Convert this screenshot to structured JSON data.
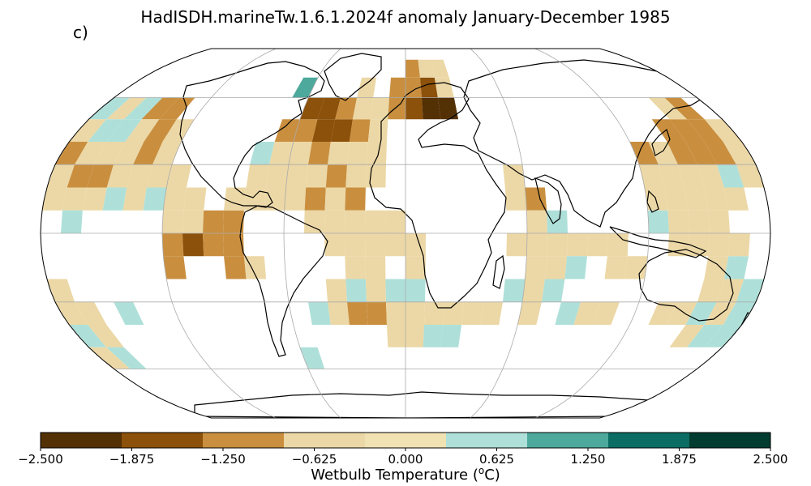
{
  "title": "HadISDH.marineTw.1.6.1.2024f anomaly January-December 1985",
  "panel_label": "c)",
  "colorbar": {
    "label": "Wetbulb Temperature (",
    "label_sup": "o",
    "label_end": "C)",
    "ticks": [
      "−2.500",
      "−1.875",
      "−1.250",
      "−0.625",
      "0.000",
      "0.625",
      "1.250",
      "1.875",
      "2.500"
    ],
    "tick_values": [
      -2.5,
      -1.875,
      -1.25,
      -0.625,
      0.0,
      0.625,
      1.25,
      1.875,
      2.5
    ],
    "colors": [
      "#543005",
      "#8c510a",
      "#c98f3f",
      "#ecd8a6",
      "#f1e2b4",
      "#aee0d9",
      "#4da99c",
      "#0b6d63",
      "#003c30"
    ],
    "bins": [
      {
        "min": -2.5,
        "max": -1.875,
        "color": "#543005"
      },
      {
        "min": -1.875,
        "max": -1.25,
        "color": "#8c510a"
      },
      {
        "min": -1.25,
        "max": -0.625,
        "color": "#c98f3f"
      },
      {
        "min": -0.625,
        "max": 0.0,
        "color": "#ecd8a6"
      },
      {
        "min": 0.0,
        "max": 0.625,
        "color": "#aee0d9"
      },
      {
        "min": 0.625,
        "max": 1.25,
        "color": "#4da99c"
      },
      {
        "min": 1.25,
        "max": 1.875,
        "color": "#0b6d63"
      },
      {
        "min": 1.875,
        "max": 2.5,
        "color": "#003c30"
      }
    ]
  },
  "map": {
    "projection": "Robinson",
    "gridlines": true,
    "grid_lons": [
      -180,
      -120,
      -60,
      0,
      60,
      120,
      180
    ],
    "grid_lats": [
      -60,
      -30,
      0,
      30,
      60
    ]
  },
  "grid_data": [
    {
      "lon": -175,
      "lat": 55,
      "v": 0.3
    },
    {
      "lon": -165,
      "lat": 55,
      "v": -0.4
    },
    {
      "lon": -155,
      "lat": 55,
      "v": 0.3
    },
    {
      "lon": -145,
      "lat": 55,
      "v": -0.9
    },
    {
      "lon": -135,
      "lat": 55,
      "v": -0.9
    },
    {
      "lon": -175,
      "lat": 45,
      "v": -0.4
    },
    {
      "lon": -165,
      "lat": 45,
      "v": 0.3
    },
    {
      "lon": -155,
      "lat": 45,
      "v": 0.3
    },
    {
      "lon": -145,
      "lat": 45,
      "v": -0.4
    },
    {
      "lon": -135,
      "lat": 45,
      "v": -0.9
    },
    {
      "lon": -125,
      "lat": 45,
      "v": -0.4
    },
    {
      "lon": -175,
      "lat": 35,
      "v": -0.9
    },
    {
      "lon": -165,
      "lat": 35,
      "v": -0.4
    },
    {
      "lon": -155,
      "lat": 35,
      "v": -0.4
    },
    {
      "lon": -145,
      "lat": 35,
      "v": -0.4
    },
    {
      "lon": -135,
      "lat": 35,
      "v": -0.9
    },
    {
      "lon": -125,
      "lat": 35,
      "v": -0.4
    },
    {
      "lon": -175,
      "lat": 25,
      "v": -0.4
    },
    {
      "lon": -165,
      "lat": 25,
      "v": -0.9
    },
    {
      "lon": -155,
      "lat": 25,
      "v": -0.9
    },
    {
      "lon": -145,
      "lat": 25,
      "v": -0.4
    },
    {
      "lon": -135,
      "lat": 25,
      "v": -0.4
    },
    {
      "lon": -125,
      "lat": 25,
      "v": -0.4
    },
    {
      "lon": -115,
      "lat": 25,
      "v": -0.4
    },
    {
      "lon": -175,
      "lat": 15,
      "v": -0.4
    },
    {
      "lon": -165,
      "lat": 15,
      "v": -0.4
    },
    {
      "lon": -155,
      "lat": 15,
      "v": -0.4
    },
    {
      "lon": -145,
      "lat": 15,
      "v": 0.3
    },
    {
      "lon": -135,
      "lat": 15,
      "v": -0.4
    },
    {
      "lon": -125,
      "lat": 15,
      "v": 0.3
    },
    {
      "lon": -115,
      "lat": 15,
      "v": -0.4
    },
    {
      "lon": -105,
      "lat": 15,
      "v": -0.4
    },
    {
      "lon": -165,
      "lat": 5,
      "v": 0.3
    },
    {
      "lon": -115,
      "lat": 5,
      "v": -0.4
    },
    {
      "lon": -105,
      "lat": 5,
      "v": -0.4
    },
    {
      "lon": -95,
      "lat": 5,
      "v": -0.9
    },
    {
      "lon": -85,
      "lat": 5,
      "v": -0.9
    },
    {
      "lon": -115,
      "lat": -5,
      "v": -0.9
    },
    {
      "lon": -105,
      "lat": -5,
      "v": -1.5
    },
    {
      "lon": -95,
      "lat": -5,
      "v": -0.9
    },
    {
      "lon": -85,
      "lat": -5,
      "v": -0.9
    },
    {
      "lon": -115,
      "lat": -15,
      "v": -0.9
    },
    {
      "lon": -85,
      "lat": -15,
      "v": -0.9
    },
    {
      "lon": -75,
      "lat": -15,
      "v": -0.4
    },
    {
      "lon": -175,
      "lat": -25,
      "v": -0.4
    },
    {
      "lon": -175,
      "lat": -35,
      "v": -0.4
    },
    {
      "lon": -165,
      "lat": -35,
      "v": -0.4
    },
    {
      "lon": -145,
      "lat": -35,
      "v": 0.3
    },
    {
      "lon": -175,
      "lat": -45,
      "v": 0.3
    },
    {
      "lon": -165,
      "lat": -45,
      "v": -0.4
    },
    {
      "lon": -175,
      "lat": -55,
      "v": -0.4
    },
    {
      "lon": -165,
      "lat": -55,
      "v": 0.3
    },
    {
      "lon": -85,
      "lat": 15,
      "v": -0.4
    },
    {
      "lon": -75,
      "lat": 15,
      "v": -0.4
    },
    {
      "lon": -65,
      "lat": 15,
      "v": -0.4
    },
    {
      "lon": -55,
      "lat": 15,
      "v": -0.4
    },
    {
      "lon": -45,
      "lat": 15,
      "v": -0.9
    },
    {
      "lon": -35,
      "lat": 15,
      "v": -0.4
    },
    {
      "lon": -25,
      "lat": 15,
      "v": -0.9
    },
    {
      "lon": -75,
      "lat": 25,
      "v": -0.4
    },
    {
      "lon": -65,
      "lat": 25,
      "v": -0.4
    },
    {
      "lon": -55,
      "lat": 25,
      "v": -0.4
    },
    {
      "lon": -45,
      "lat": 25,
      "v": -0.4
    },
    {
      "lon": -35,
      "lat": 25,
      "v": -0.9
    },
    {
      "lon": -25,
      "lat": 25,
      "v": -0.4
    },
    {
      "lon": -15,
      "lat": 25,
      "v": -0.4
    },
    {
      "lon": -75,
      "lat": 35,
      "v": 0.3
    },
    {
      "lon": -65,
      "lat": 35,
      "v": -0.4
    },
    {
      "lon": -55,
      "lat": 35,
      "v": -0.4
    },
    {
      "lon": -45,
      "lat": 35,
      "v": -0.9
    },
    {
      "lon": -35,
      "lat": 35,
      "v": -0.4
    },
    {
      "lon": -25,
      "lat": 35,
      "v": -0.4
    },
    {
      "lon": -15,
      "lat": 35,
      "v": -0.4
    },
    {
      "lon": -65,
      "lat": 45,
      "v": -0.9
    },
    {
      "lon": -55,
      "lat": 45,
      "v": -0.9
    },
    {
      "lon": -45,
      "lat": 45,
      "v": -1.5
    },
    {
      "lon": -35,
      "lat": 45,
      "v": -1.5
    },
    {
      "lon": -25,
      "lat": 45,
      "v": -0.9
    },
    {
      "lon": -15,
      "lat": 45,
      "v": -0.4
    },
    {
      "lon": -55,
      "lat": 55,
      "v": -1.5
    },
    {
      "lon": -45,
      "lat": 55,
      "v": -1.5
    },
    {
      "lon": -35,
      "lat": 55,
      "v": -0.9
    },
    {
      "lon": -25,
      "lat": 55,
      "v": -0.4
    },
    {
      "lon": -15,
      "lat": 55,
      "v": -0.4
    },
    {
      "lon": -5,
      "lat": 55,
      "v": -0.9
    },
    {
      "lon": 5,
      "lat": 55,
      "v": -1.5
    },
    {
      "lon": 15,
      "lat": 55,
      "v": -2.1
    },
    {
      "lon": 25,
      "lat": 55,
      "v": -2.1
    },
    {
      "lon": -25,
      "lat": 65,
      "v": -0.4
    },
    {
      "lon": -5,
      "lat": 65,
      "v": -0.9
    },
    {
      "lon": 5,
      "lat": 65,
      "v": -0.9
    },
    {
      "lon": 15,
      "lat": 65,
      "v": -1.5
    },
    {
      "lon": 25,
      "lat": 65,
      "v": -0.4
    },
    {
      "lon": 5,
      "lat": 75,
      "v": -0.9
    },
    {
      "lon": 15,
      "lat": 75,
      "v": -0.4
    },
    {
      "lon": 25,
      "lat": 75,
      "v": -0.4
    },
    {
      "lon": -65,
      "lat": 65,
      "v": 0.8
    },
    {
      "lon": -45,
      "lat": 5,
      "v": -0.4
    },
    {
      "lon": -35,
      "lat": 5,
      "v": -0.4
    },
    {
      "lon": -25,
      "lat": 5,
      "v": -0.4
    },
    {
      "lon": -15,
      "lat": 5,
      "v": -0.4
    },
    {
      "lon": -5,
      "lat": 5,
      "v": -0.4
    },
    {
      "lon": -35,
      "lat": -5,
      "v": -0.4
    },
    {
      "lon": -25,
      "lat": -5,
      "v": -0.4
    },
    {
      "lon": -15,
      "lat": -5,
      "v": -0.4
    },
    {
      "lon": -5,
      "lat": -5,
      "v": -0.4
    },
    {
      "lon": 5,
      "lat": -5,
      "v": -0.4
    },
    {
      "lon": -25,
      "lat": -15,
      "v": -0.4
    },
    {
      "lon": -15,
      "lat": -15,
      "v": -0.4
    },
    {
      "lon": 5,
      "lat": -15,
      "v": -0.4
    },
    {
      "lon": -35,
      "lat": -25,
      "v": -0.4
    },
    {
      "lon": -25,
      "lat": -25,
      "v": 0.3
    },
    {
      "lon": -15,
      "lat": -25,
      "v": -0.4
    },
    {
      "lon": -5,
      "lat": -25,
      "v": 0.3
    },
    {
      "lon": 5,
      "lat": -25,
      "v": 0.3
    },
    {
      "lon": -45,
      "lat": -35,
      "v": 0.3
    },
    {
      "lon": -35,
      "lat": -35,
      "v": -0.4
    },
    {
      "lon": -25,
      "lat": -35,
      "v": -0.9
    },
    {
      "lon": -15,
      "lat": -35,
      "v": -0.9
    },
    {
      "lon": -5,
      "lat": -35,
      "v": -0.4
    },
    {
      "lon": 5,
      "lat": -35,
      "v": -0.4
    },
    {
      "lon": 15,
      "lat": -35,
      "v": -0.4
    },
    {
      "lon": 25,
      "lat": -35,
      "v": -0.4
    },
    {
      "lon": 35,
      "lat": -35,
      "v": -0.4
    },
    {
      "lon": -5,
      "lat": -45,
      "v": -0.4
    },
    {
      "lon": 5,
      "lat": -45,
      "v": -0.4
    },
    {
      "lon": 15,
      "lat": -45,
      "v": 0.3
    },
    {
      "lon": 25,
      "lat": -45,
      "v": 0.3
    },
    {
      "lon": -55,
      "lat": -55,
      "v": 0.3
    },
    {
      "lon": 55,
      "lat": 25,
      "v": -0.4
    },
    {
      "lon": 65,
      "lat": 15,
      "v": -0.9
    },
    {
      "lon": 55,
      "lat": 15,
      "v": -0.4
    },
    {
      "lon": 65,
      "lat": 5,
      "v": -0.4
    },
    {
      "lon": 75,
      "lat": 5,
      "v": 0.3
    },
    {
      "lon": 55,
      "lat": -5,
      "v": -0.4
    },
    {
      "lon": 65,
      "lat": -5,
      "v": -0.4
    },
    {
      "lon": 75,
      "lat": -5,
      "v": -0.4
    },
    {
      "lon": 85,
      "lat": -5,
      "v": -0.4
    },
    {
      "lon": 95,
      "lat": -5,
      "v": -0.4
    },
    {
      "lon": 65,
      "lat": -15,
      "v": -0.4
    },
    {
      "lon": 75,
      "lat": -15,
      "v": -0.4
    },
    {
      "lon": 85,
      "lat": -15,
      "v": 0.3
    },
    {
      "lon": 55,
      "lat": -25,
      "v": 0.3
    },
    {
      "lon": 65,
      "lat": -25,
      "v": -0.4
    },
    {
      "lon": 75,
      "lat": -25,
      "v": 0.3
    },
    {
      "lon": 45,
      "lat": -35,
      "v": -0.4
    },
    {
      "lon": 65,
      "lat": -35,
      "v": -0.4
    },
    {
      "lon": 85,
      "lat": -35,
      "v": 0.3
    },
    {
      "lon": 95,
      "lat": -35,
      "v": -0.4
    },
    {
      "lon": 105,
      "lat": -35,
      "v": -0.4
    },
    {
      "lon": 135,
      "lat": -35,
      "v": -0.4
    },
    {
      "lon": 145,
      "lat": -35,
      "v": -0.4
    },
    {
      "lon": 155,
      "lat": -35,
      "v": 0.3
    },
    {
      "lon": 125,
      "lat": 5,
      "v": 0.3
    },
    {
      "lon": 135,
      "lat": 5,
      "v": -0.4
    },
    {
      "lon": 145,
      "lat": 5,
      "v": -0.4
    },
    {
      "lon": 155,
      "lat": 5,
      "v": -0.4
    },
    {
      "lon": 125,
      "lat": 15,
      "v": -0.4
    },
    {
      "lon": 135,
      "lat": 15,
      "v": -0.4
    },
    {
      "lon": 145,
      "lat": 15,
      "v": -0.4
    },
    {
      "lon": 155,
      "lat": 15,
      "v": -0.4
    },
    {
      "lon": 165,
      "lat": 15,
      "v": -0.4
    },
    {
      "lon": 125,
      "lat": 25,
      "v": -0.4
    },
    {
      "lon": 135,
      "lat": 25,
      "v": -0.4
    },
    {
      "lon": 145,
      "lat": 25,
      "v": -0.4
    },
    {
      "lon": 155,
      "lat": 25,
      "v": -0.4
    },
    {
      "lon": 165,
      "lat": 25,
      "v": 0.3
    },
    {
      "lon": 175,
      "lat": 25,
      "v": -0.4
    },
    {
      "lon": 125,
      "lat": 35,
      "v": -0.9
    },
    {
      "lon": 135,
      "lat": 35,
      "v": -0.4
    },
    {
      "lon": 145,
      "lat": 35,
      "v": -0.9
    },
    {
      "lon": 155,
      "lat": 35,
      "v": -0.9
    },
    {
      "lon": 165,
      "lat": 35,
      "v": -0.9
    },
    {
      "lon": 175,
      "lat": 35,
      "v": -0.4
    },
    {
      "lon": 145,
      "lat": 45,
      "v": -0.9
    },
    {
      "lon": 155,
      "lat": 45,
      "v": -0.9
    },
    {
      "lon": 165,
      "lat": 45,
      "v": -0.9
    },
    {
      "lon": 175,
      "lat": 45,
      "v": -0.4
    },
    {
      "lon": 155,
      "lat": 55,
      "v": -0.4
    },
    {
      "lon": 165,
      "lat": 55,
      "v": -0.9
    },
    {
      "lon": 105,
      "lat": -5,
      "v": -0.4
    },
    {
      "lon": 115,
      "lat": -15,
      "v": -0.4
    },
    {
      "lon": 105,
      "lat": -15,
      "v": -0.4
    },
    {
      "lon": 155,
      "lat": -15,
      "v": -0.4
    },
    {
      "lon": 165,
      "lat": -15,
      "v": 0.3
    },
    {
      "lon": 155,
      "lat": -25,
      "v": -0.4
    },
    {
      "lon": 165,
      "lat": -25,
      "v": -0.4
    },
    {
      "lon": 175,
      "lat": -25,
      "v": 0.3
    },
    {
      "lon": 165,
      "lat": -35,
      "v": -0.4
    },
    {
      "lon": 175,
      "lat": -35,
      "v": 0.3
    },
    {
      "lon": 155,
      "lat": -45,
      "v": -0.4
    },
    {
      "lon": 165,
      "lat": -45,
      "v": 0.3
    },
    {
      "lon": 175,
      "lat": -45,
      "v": 0.3
    },
    {
      "lon": 135,
      "lat": -5,
      "v": -0.4
    },
    {
      "lon": 145,
      "lat": -5,
      "v": -0.4
    },
    {
      "lon": 155,
      "lat": -5,
      "v": -0.4
    },
    {
      "lon": 165,
      "lat": -5,
      "v": -0.4
    }
  ]
}
